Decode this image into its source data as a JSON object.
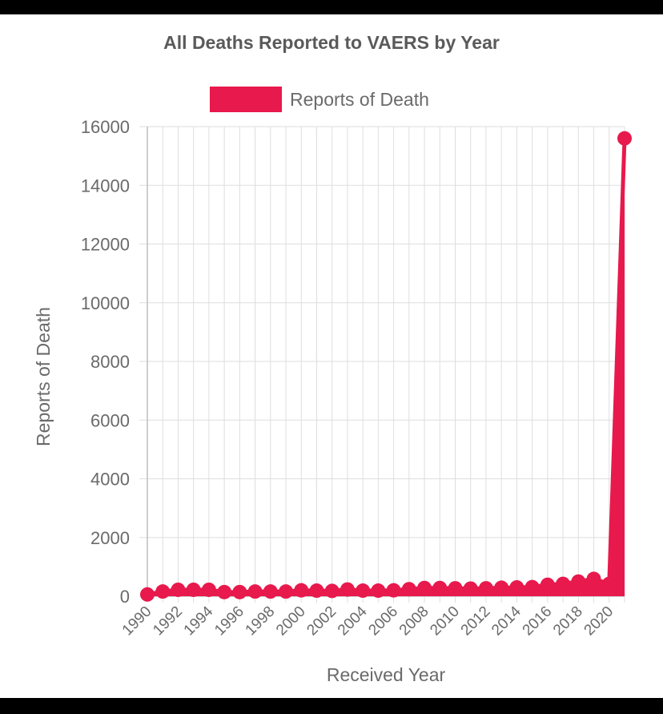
{
  "chart_data": {
    "type": "line",
    "title": "All Deaths Reported to VAERS by Year",
    "xlabel": "Received Year",
    "ylabel": "Reports of Death",
    "legend": {
      "label": "Reports of Death",
      "position": "top"
    },
    "color": "#e8194c",
    "grid": true,
    "ylim": [
      0,
      16000
    ],
    "yticks": [
      0,
      2000,
      4000,
      6000,
      8000,
      10000,
      12000,
      14000,
      16000
    ],
    "xtick_labels": [
      "1990",
      "1992",
      "1994",
      "1996",
      "1998",
      "2000",
      "2002",
      "2004",
      "2006",
      "2008",
      "2010",
      "2012",
      "2014",
      "2016",
      "2018",
      "2020"
    ],
    "x": [
      1990,
      1991,
      1992,
      1993,
      1994,
      1995,
      1996,
      1997,
      1998,
      1999,
      2000,
      2001,
      2002,
      2003,
      2004,
      2005,
      2006,
      2007,
      2008,
      2009,
      2010,
      2011,
      2012,
      2013,
      2014,
      2015,
      2016,
      2017,
      2018,
      2019,
      2020,
      2021
    ],
    "series": [
      {
        "name": "Reports of Death",
        "values": [
          60,
          160,
          220,
          220,
          220,
          140,
          140,
          160,
          160,
          160,
          200,
          190,
          180,
          230,
          190,
          190,
          200,
          240,
          280,
          280,
          270,
          260,
          270,
          290,
          300,
          310,
          390,
          420,
          500,
          590,
          420,
          15600
        ]
      }
    ]
  }
}
